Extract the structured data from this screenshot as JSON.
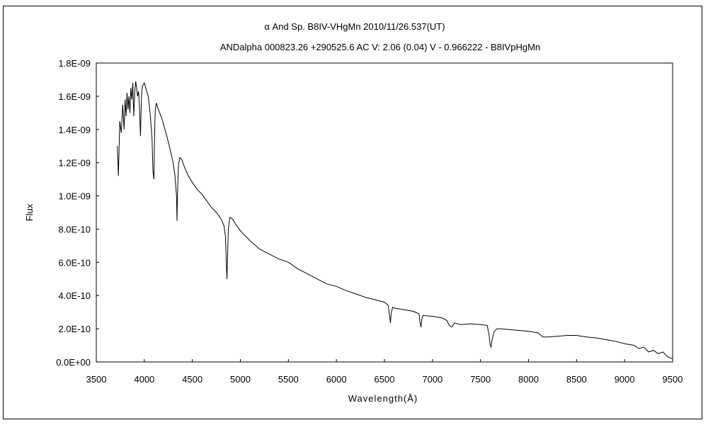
{
  "chart_data": {
    "type": "line",
    "title": "α  And     Sp. B8IV-VHgMn     2010/11/26.537(UT)",
    "subtitle": "ANDalpha 000823.26 +290525.6 AC V: 2.06 (0.04) V - 0.966222 - B8IVpHgMn",
    "xlabel": "Wavelength(Å)",
    "ylabel": "Flux",
    "xlim": [
      3500,
      9500
    ],
    "ylim": [
      0,
      1.8e-09
    ],
    "x_ticks": [
      3500,
      4000,
      4500,
      5000,
      5500,
      6000,
      6500,
      7000,
      7500,
      8000,
      8500,
      9000,
      9500
    ],
    "x_tick_labels": [
      "3500",
      "4000",
      "4500",
      "5000",
      "5500",
      "6000",
      "6500",
      "7000",
      "7500",
      "8000",
      "8500",
      "9000",
      "9500"
    ],
    "y_ticks": [
      0,
      2e-10,
      4e-10,
      6e-10,
      8e-10,
      1e-09,
      1.2e-09,
      1.4e-09,
      1.6e-09,
      1.8e-09
    ],
    "y_tick_labels": [
      "0.0E+00",
      "2.0E-10",
      "4.0E-10",
      "6.0E-10",
      "8.0E-10",
      "1.0E-09",
      "1.2E-09",
      "1.4E-09",
      "1.6E-09",
      "1.8E-09"
    ],
    "grid": false,
    "legend": "none",
    "series": [
      {
        "x": [
          3720,
          3730,
          3745,
          3760,
          3775,
          3790,
          3800,
          3810,
          3820,
          3830,
          3840,
          3850,
          3860,
          3870,
          3880,
          3890,
          3900,
          3910,
          3920,
          3930,
          3940,
          3950,
          3960,
          3970,
          3980,
          3990,
          4000,
          4010,
          4020,
          4040,
          4060,
          4080,
          4090,
          4100,
          4105,
          4110,
          4115,
          4125,
          4140,
          4160,
          4180,
          4200,
          4230,
          4260,
          4280,
          4300,
          4320,
          4335,
          4340,
          4345,
          4355,
          4370,
          4390,
          4420,
          4450,
          4500,
          4550,
          4600,
          4650,
          4700,
          4750,
          4800,
          4830,
          4845,
          4855,
          4860,
          4865,
          4875,
          4890,
          4920,
          4950,
          5000,
          5100,
          5200,
          5300,
          5400,
          5500,
          5600,
          5700,
          5800,
          5900,
          6000,
          6100,
          6200,
          6300,
          6400,
          6500,
          6540,
          6555,
          6563,
          6570,
          6585,
          6600,
          6700,
          6800,
          6860,
          6870,
          6880,
          6890,
          6900,
          7000,
          7100,
          7150,
          7175,
          7200,
          7230,
          7260,
          7300,
          7400,
          7500,
          7570,
          7590,
          7600,
          7610,
          7620,
          7640,
          7670,
          7700,
          7800,
          7900,
          8000,
          8100,
          8150,
          8200,
          8300,
          8400,
          8500,
          8600,
          8700,
          8800,
          8900,
          9000,
          9100,
          9150,
          9200,
          9250,
          9300,
          9350,
          9400,
          9450,
          9500
        ],
        "y": [
          1.3e-09,
          1.12e-09,
          1.45e-09,
          1.38e-09,
          1.55e-09,
          1.4e-09,
          1.58e-09,
          1.48e-09,
          1.62e-09,
          1.52e-09,
          1.6e-09,
          1.5e-09,
          1.65e-09,
          1.58e-09,
          1.68e-09,
          1.48e-09,
          1.62e-09,
          1.69e-09,
          1.65e-09,
          1.6e-09,
          1.63e-09,
          1.52e-09,
          1.36e-09,
          1.6e-09,
          1.66e-09,
          1.67e-09,
          1.68e-09,
          1.66e-09,
          1.64e-09,
          1.6e-09,
          1.5e-09,
          1.35e-09,
          1.15e-09,
          1.1e-09,
          1.3e-09,
          1.45e-09,
          1.52e-09,
          1.56e-09,
          1.53e-09,
          1.5e-09,
          1.47e-09,
          1.43e-09,
          1.37e-09,
          1.3e-09,
          1.25e-09,
          1.2e-09,
          1.12e-09,
          1e-09,
          8.5e-10,
          1e-09,
          1.18e-09,
          1.23e-09,
          1.22e-09,
          1.17e-09,
          1.13e-09,
          1.08e-09,
          1.04e-09,
          1.01e-09,
          9.7e-10,
          9.3e-10,
          9e-10,
          8.6e-10,
          8.2e-10,
          7.5e-10,
          5.8e-10,
          5e-10,
          6e-10,
          8e-10,
          8.7e-10,
          8.6e-10,
          8.3e-10,
          7.9e-10,
          7.3e-10,
          6.8e-10,
          6.5e-10,
          6.2e-10,
          6e-10,
          5.6e-10,
          5.3e-10,
          5e-10,
          4.7e-10,
          4.55e-10,
          4.3e-10,
          4.1e-10,
          3.9e-10,
          3.75e-10,
          3.6e-10,
          3.4e-10,
          2.7e-10,
          2.35e-10,
          2.9e-10,
          3.3e-10,
          3.25e-10,
          3.15e-10,
          3.05e-10,
          2.9e-10,
          2.4e-10,
          2.1e-10,
          2.6e-10,
          2.8e-10,
          2.75e-10,
          2.65e-10,
          2.5e-10,
          2.2e-10,
          2.1e-10,
          2.35e-10,
          2.3e-10,
          2.25e-10,
          2.3e-10,
          2.25e-10,
          2.2e-10,
          1.6e-10,
          1.05e-10,
          9e-11,
          1.3e-10,
          1.8e-10,
          2e-10,
          2e-10,
          1.95e-10,
          1.9e-10,
          1.85e-10,
          1.75e-10,
          1.5e-10,
          1.5e-10,
          1.55e-10,
          1.6e-10,
          1.6e-10,
          1.5e-10,
          1.45e-10,
          1.35e-10,
          1.25e-10,
          1.1e-10,
          1e-10,
          8e-11,
          9e-11,
          6e-11,
          7e-11,
          5e-11,
          6e-11,
          3e-11,
          2e-11
        ]
      }
    ]
  }
}
